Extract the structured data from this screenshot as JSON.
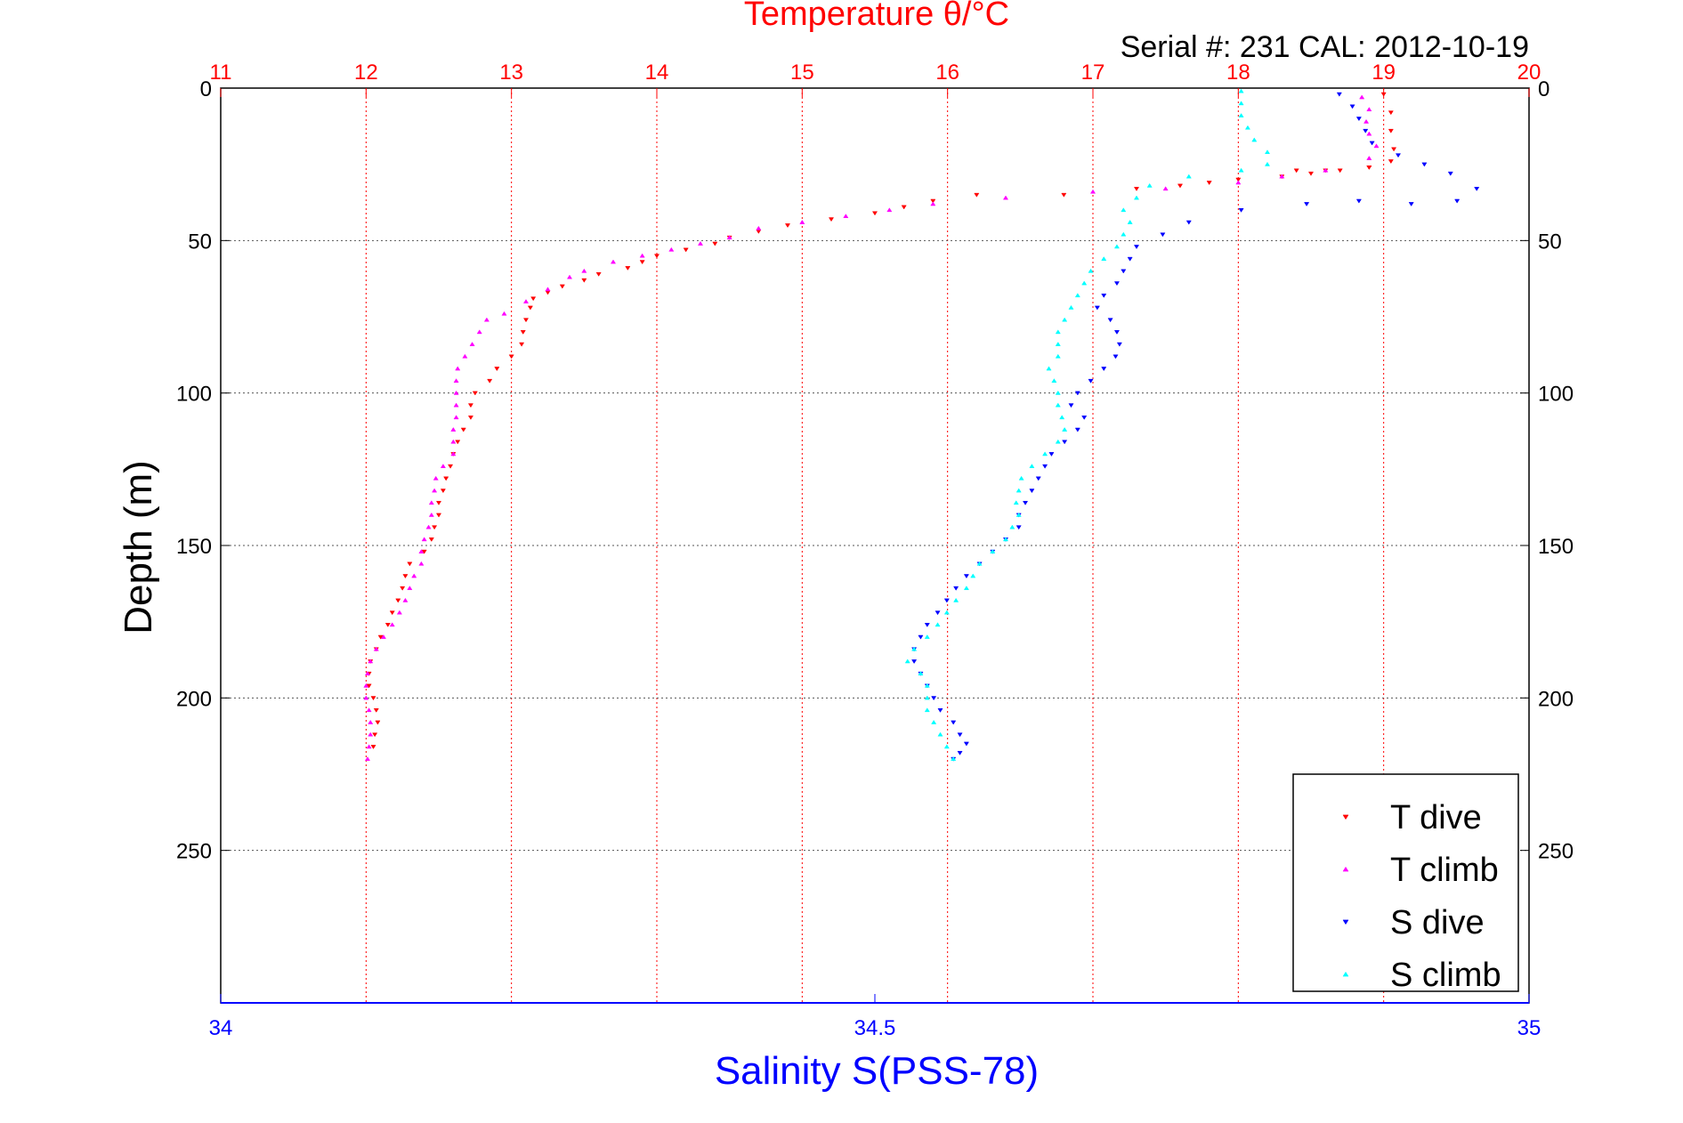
{
  "chart_data": {
    "type": "scatter",
    "title": "Temperature θ/°C",
    "subtitle": "Serial #: 231  CAL: 2012-10-19",
    "ylabel": "Depth (m)",
    "xlabel": "Salinity S(PSS-78)",
    "top_axis": {
      "label": "Temperature θ/°C",
      "range": [
        11,
        20
      ],
      "ticks": [
        11,
        12,
        13,
        14,
        15,
        16,
        17,
        18,
        19,
        20
      ],
      "color": "#ff0000"
    },
    "bottom_axis": {
      "label": "Salinity S(PSS-78)",
      "range": [
        34,
        35
      ],
      "ticks": [
        34,
        34.5,
        35
      ],
      "color": "#0000ff"
    },
    "y_axis": {
      "range": [
        0,
        300
      ],
      "inverted": true,
      "ticks": [
        0,
        50,
        100,
        150,
        200,
        250
      ]
    },
    "grid": true,
    "legend_position": "bottom-right",
    "series": [
      {
        "name": "T dive",
        "axis": "temperature",
        "color": "#ff0000",
        "marker": "triangle-down",
        "points": [
          [
            19.0,
            2
          ],
          [
            19.05,
            8
          ],
          [
            19.05,
            14
          ],
          [
            19.07,
            20
          ],
          [
            19.05,
            24
          ],
          [
            18.9,
            26
          ],
          [
            18.7,
            27
          ],
          [
            18.4,
            27
          ],
          [
            18.9,
            26
          ],
          [
            18.6,
            27
          ],
          [
            18.5,
            28
          ],
          [
            18.3,
            29
          ],
          [
            18.0,
            30
          ],
          [
            17.8,
            31
          ],
          [
            17.6,
            32
          ],
          [
            17.3,
            33
          ],
          [
            16.8,
            35
          ],
          [
            16.2,
            35
          ],
          [
            15.9,
            37
          ],
          [
            15.7,
            39
          ],
          [
            15.5,
            41
          ],
          [
            15.2,
            43
          ],
          [
            14.9,
            45
          ],
          [
            14.7,
            47
          ],
          [
            14.5,
            49
          ],
          [
            14.4,
            51
          ],
          [
            14.2,
            53
          ],
          [
            14.0,
            55
          ],
          [
            13.9,
            57
          ],
          [
            13.8,
            59
          ],
          [
            13.6,
            61
          ],
          [
            13.5,
            63
          ],
          [
            13.35,
            65
          ],
          [
            13.25,
            67
          ],
          [
            13.15,
            69
          ],
          [
            13.13,
            72
          ],
          [
            13.1,
            76
          ],
          [
            13.08,
            80
          ],
          [
            13.07,
            84
          ],
          [
            13.0,
            88
          ],
          [
            12.9,
            92
          ],
          [
            12.85,
            96
          ],
          [
            12.75,
            100
          ],
          [
            12.72,
            104
          ],
          [
            12.72,
            108
          ],
          [
            12.67,
            112
          ],
          [
            12.63,
            116
          ],
          [
            12.6,
            120
          ],
          [
            12.58,
            124
          ],
          [
            12.55,
            128
          ],
          [
            12.53,
            132
          ],
          [
            12.5,
            136
          ],
          [
            12.5,
            140
          ],
          [
            12.47,
            144
          ],
          [
            12.45,
            148
          ],
          [
            12.4,
            152
          ],
          [
            12.3,
            156
          ],
          [
            12.27,
            160
          ],
          [
            12.25,
            164
          ],
          [
            12.22,
            168
          ],
          [
            12.18,
            172
          ],
          [
            12.15,
            176
          ],
          [
            12.1,
            180
          ],
          [
            12.07,
            184
          ],
          [
            12.03,
            188
          ],
          [
            12.02,
            192
          ],
          [
            12.02,
            196
          ],
          [
            12.05,
            200
          ],
          [
            12.07,
            204
          ],
          [
            12.08,
            208
          ],
          [
            12.06,
            212
          ],
          [
            12.05,
            216
          ]
        ]
      },
      {
        "name": "T climb",
        "axis": "temperature",
        "color": "#ff00ff",
        "marker": "triangle-up",
        "points": [
          [
            12.01,
            220
          ],
          [
            12.02,
            216
          ],
          [
            12.03,
            212
          ],
          [
            12.03,
            208
          ],
          [
            12.02,
            204
          ],
          [
            12.0,
            200
          ],
          [
            12.0,
            196
          ],
          [
            12.01,
            192
          ],
          [
            12.03,
            188
          ],
          [
            12.07,
            184
          ],
          [
            12.12,
            180
          ],
          [
            12.18,
            176
          ],
          [
            12.23,
            172
          ],
          [
            12.27,
            168
          ],
          [
            12.3,
            164
          ],
          [
            12.33,
            160
          ],
          [
            12.38,
            156
          ],
          [
            12.38,
            152
          ],
          [
            12.4,
            148
          ],
          [
            12.43,
            144
          ],
          [
            12.45,
            140
          ],
          [
            12.45,
            136
          ],
          [
            12.47,
            132
          ],
          [
            12.48,
            128
          ],
          [
            12.53,
            124
          ],
          [
            12.6,
            120
          ],
          [
            12.6,
            116
          ],
          [
            12.6,
            112
          ],
          [
            12.62,
            108
          ],
          [
            12.62,
            104
          ],
          [
            12.62,
            100
          ],
          [
            12.62,
            96
          ],
          [
            12.63,
            92
          ],
          [
            12.68,
            88
          ],
          [
            12.73,
            84
          ],
          [
            12.78,
            80
          ],
          [
            12.83,
            76
          ],
          [
            12.95,
            74
          ],
          [
            13.1,
            70
          ],
          [
            13.25,
            66
          ],
          [
            13.4,
            62
          ],
          [
            13.5,
            60
          ],
          [
            13.7,
            57
          ],
          [
            13.9,
            55
          ],
          [
            14.1,
            53
          ],
          [
            14.3,
            51
          ],
          [
            14.5,
            49
          ],
          [
            14.7,
            46
          ],
          [
            15.0,
            44
          ],
          [
            15.3,
            42
          ],
          [
            15.6,
            40
          ],
          [
            15.9,
            38
          ],
          [
            16.4,
            36
          ],
          [
            17.0,
            34
          ],
          [
            17.5,
            33
          ],
          [
            18.0,
            31
          ],
          [
            18.3,
            29
          ],
          [
            18.6,
            27
          ],
          [
            18.9,
            23
          ],
          [
            18.95,
            19
          ],
          [
            18.9,
            15
          ],
          [
            18.88,
            11
          ],
          [
            18.9,
            7
          ],
          [
            18.85,
            3
          ]
        ]
      },
      {
        "name": "S dive",
        "axis": "salinity",
        "color": "#0000ff",
        "marker": "triangle-down",
        "points": [
          [
            34.855,
            2
          ],
          [
            34.865,
            6
          ],
          [
            34.87,
            10
          ],
          [
            34.875,
            14
          ],
          [
            34.88,
            18
          ],
          [
            34.9,
            22
          ],
          [
            34.92,
            25
          ],
          [
            34.94,
            28
          ],
          [
            34.96,
            33
          ],
          [
            34.945,
            37
          ],
          [
            34.91,
            38
          ],
          [
            34.87,
            37
          ],
          [
            34.83,
            38
          ],
          [
            34.78,
            40
          ],
          [
            34.74,
            44
          ],
          [
            34.72,
            48
          ],
          [
            34.7,
            52
          ],
          [
            34.695,
            56
          ],
          [
            34.69,
            60
          ],
          [
            34.685,
            64
          ],
          [
            34.675,
            68
          ],
          [
            34.67,
            72
          ],
          [
            34.68,
            76
          ],
          [
            34.685,
            80
          ],
          [
            34.687,
            84
          ],
          [
            34.684,
            88
          ],
          [
            34.675,
            92
          ],
          [
            34.665,
            96
          ],
          [
            34.655,
            100
          ],
          [
            34.65,
            104
          ],
          [
            34.66,
            108
          ],
          [
            34.655,
            112
          ],
          [
            34.645,
            116
          ],
          [
            34.635,
            120
          ],
          [
            34.63,
            124
          ],
          [
            34.625,
            128
          ],
          [
            34.62,
            132
          ],
          [
            34.615,
            136
          ],
          [
            34.61,
            140
          ],
          [
            34.61,
            144
          ],
          [
            34.6,
            148
          ],
          [
            34.59,
            152
          ],
          [
            34.58,
            156
          ],
          [
            34.57,
            160
          ],
          [
            34.562,
            164
          ],
          [
            34.555,
            168
          ],
          [
            34.548,
            172
          ],
          [
            34.54,
            176
          ],
          [
            34.535,
            180
          ],
          [
            34.53,
            184
          ],
          [
            34.53,
            188
          ],
          [
            34.535,
            192
          ],
          [
            34.54,
            196
          ],
          [
            34.545,
            200
          ],
          [
            34.55,
            204
          ],
          [
            34.56,
            208
          ],
          [
            34.565,
            212
          ],
          [
            34.57,
            215
          ],
          [
            34.565,
            218
          ],
          [
            34.56,
            220
          ]
        ]
      },
      {
        "name": "S climb",
        "axis": "salinity",
        "color": "#00ffff",
        "marker": "triangle-up",
        "points": [
          [
            34.56,
            220
          ],
          [
            34.555,
            216
          ],
          [
            34.55,
            212
          ],
          [
            34.545,
            208
          ],
          [
            34.54,
            204
          ],
          [
            34.54,
            200
          ],
          [
            34.54,
            196
          ],
          [
            34.535,
            192
          ],
          [
            34.525,
            188
          ],
          [
            34.53,
            184
          ],
          [
            34.54,
            180
          ],
          [
            34.548,
            176
          ],
          [
            34.555,
            172
          ],
          [
            34.562,
            168
          ],
          [
            34.57,
            164
          ],
          [
            34.575,
            160
          ],
          [
            34.58,
            156
          ],
          [
            34.59,
            152
          ],
          [
            34.6,
            148
          ],
          [
            34.605,
            144
          ],
          [
            34.61,
            140
          ],
          [
            34.608,
            136
          ],
          [
            34.61,
            132
          ],
          [
            34.612,
            128
          ],
          [
            34.62,
            124
          ],
          [
            34.63,
            120
          ],
          [
            34.64,
            116
          ],
          [
            34.645,
            112
          ],
          [
            34.643,
            108
          ],
          [
            34.64,
            104
          ],
          [
            34.64,
            100
          ],
          [
            34.637,
            96
          ],
          [
            34.633,
            92
          ],
          [
            34.64,
            88
          ],
          [
            34.64,
            84
          ],
          [
            34.64,
            80
          ],
          [
            34.645,
            76
          ],
          [
            34.65,
            72
          ],
          [
            34.655,
            68
          ],
          [
            34.66,
            64
          ],
          [
            34.665,
            60
          ],
          [
            34.675,
            56
          ],
          [
            34.685,
            52
          ],
          [
            34.69,
            48
          ],
          [
            34.695,
            44
          ],
          [
            34.69,
            40
          ],
          [
            34.7,
            36
          ],
          [
            34.71,
            32
          ],
          [
            34.74,
            29
          ],
          [
            34.78,
            27
          ],
          [
            34.8,
            25
          ],
          [
            34.8,
            21
          ],
          [
            34.79,
            17
          ],
          [
            34.785,
            13
          ],
          [
            34.78,
            9
          ],
          [
            34.78,
            5
          ],
          [
            34.78,
            1
          ]
        ]
      }
    ]
  }
}
